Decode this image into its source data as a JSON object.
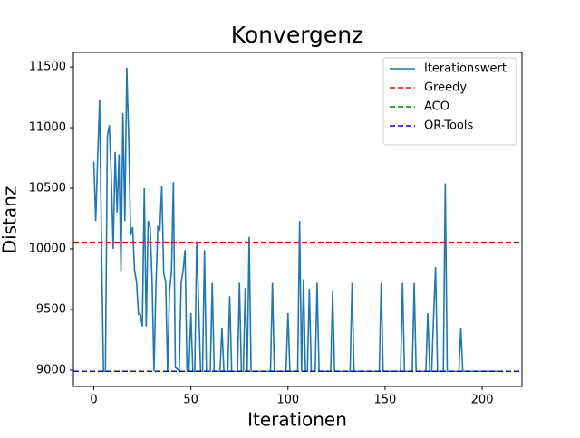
{
  "chart_data": {
    "type": "line",
    "title": "Konvergenz",
    "xlabel": "Iterationen",
    "ylabel": "Distanz",
    "x": [
      0,
      1,
      2,
      3,
      4,
      5,
      6,
      7,
      8,
      9,
      10,
      11,
      12,
      13,
      14,
      15,
      16,
      17,
      18,
      19,
      20,
      21,
      22,
      23,
      24,
      25,
      26,
      27,
      28,
      29,
      30,
      31,
      32,
      33,
      34,
      35,
      36,
      37,
      38,
      39,
      40,
      41,
      42,
      43,
      44,
      45,
      46,
      47,
      48,
      49,
      50,
      51,
      52,
      53,
      54,
      55,
      56,
      57,
      58,
      59,
      60,
      61,
      62,
      63,
      64,
      65,
      66,
      67,
      68,
      69,
      70,
      71,
      72,
      73,
      74,
      75,
      76,
      77,
      78,
      79,
      80,
      81,
      82,
      83,
      84,
      85,
      86,
      87,
      88,
      89,
      90,
      91,
      92,
      93,
      94,
      95,
      96,
      97,
      98,
      99,
      100,
      101,
      102,
      103,
      104,
      105,
      106,
      107,
      108,
      109,
      110,
      111,
      112,
      113,
      114,
      115,
      116,
      117,
      118,
      119,
      120,
      121,
      122,
      123,
      124,
      125,
      126,
      127,
      128,
      129,
      130,
      131,
      132,
      133,
      134,
      135,
      136,
      137,
      138,
      139,
      140,
      141,
      142,
      143,
      144,
      145,
      146,
      147,
      148,
      149,
      150,
      151,
      152,
      153,
      154,
      155,
      156,
      157,
      158,
      159,
      160,
      161,
      162,
      163,
      164,
      165,
      166,
      167,
      168,
      169,
      170,
      171,
      172,
      173,
      174,
      175,
      176,
      177,
      178,
      179,
      180,
      181,
      182,
      183,
      184,
      185,
      186,
      187,
      188,
      189,
      190,
      191,
      192,
      193,
      194,
      195,
      196,
      197,
      198,
      199,
      200,
      201,
      202,
      203,
      204,
      205,
      206,
      207,
      208,
      209,
      210
    ],
    "series": [
      {
        "name": "Iterationswert",
        "color": "#1f77b4",
        "values": [
          10720,
          10230,
          10750,
          11230,
          10000,
          8990,
          8990,
          10930,
          11020,
          10600,
          10000,
          10800,
          10300,
          10780,
          9810,
          11120,
          10230,
          11495,
          10900,
          10110,
          10180,
          9820,
          9730,
          9460,
          9460,
          9360,
          10500,
          9360,
          10230,
          10180,
          9750,
          8990,
          9700,
          10180,
          10160,
          10520,
          9800,
          9730,
          8990,
          9650,
          9810,
          10550,
          9020,
          9010,
          8990,
          9720,
          9820,
          9990,
          8990,
          8990,
          9470,
          8990,
          8990,
          10050,
          9540,
          8990,
          8990,
          9990,
          8990,
          8990,
          8990,
          9720,
          8990,
          8990,
          8990,
          8990,
          9350,
          8990,
          8990,
          8990,
          9610,
          8990,
          8990,
          8990,
          8990,
          9720,
          8990,
          8990,
          9680,
          8990,
          10100,
          8990,
          8990,
          8990,
          8990,
          8990,
          8990,
          8990,
          8990,
          8990,
          8990,
          8990,
          9720,
          8990,
          8990,
          8990,
          8990,
          8990,
          8990,
          8990,
          9470,
          8990,
          8990,
          8990,
          8990,
          8990,
          10230,
          8990,
          9750,
          8990,
          8990,
          9670,
          8990,
          8990,
          8990,
          9720,
          8990,
          8990,
          8990,
          8990,
          8990,
          8990,
          8990,
          9650,
          8990,
          8990,
          8990,
          8990,
          8990,
          8990,
          8990,
          8990,
          8990,
          9720,
          8990,
          8990,
          8990,
          8990,
          8990,
          8990,
          8990,
          8990,
          8990,
          8990,
          8990,
          8990,
          8990,
          8990,
          9720,
          8990,
          8990,
          8990,
          8990,
          8990,
          8990,
          8990,
          8990,
          8990,
          8990,
          9720,
          8990,
          8990,
          8990,
          8990,
          8990,
          9720,
          8990,
          8990,
          8990,
          8990,
          8990,
          8990,
          9470,
          8990,
          8990,
          9450,
          9850,
          8990,
          8990,
          8990,
          8990,
          10540,
          8990,
          8990,
          8990,
          8990,
          8990,
          8990,
          8990,
          9350,
          8990,
          8990,
          8990,
          8990,
          8990,
          8990,
          8990,
          8990,
          8990,
          8990,
          8990,
          8990,
          8990,
          8990,
          8990,
          8990,
          8990,
          8990,
          8990,
          8990,
          8990
        ]
      }
    ],
    "hlines": [
      {
        "name": "Greedy",
        "color": "red",
        "value": 10055
      },
      {
        "name": "ACO",
        "color": "green",
        "value": 8990
      },
      {
        "name": "OR-Tools",
        "color": "blue",
        "value": 8990
      }
    ],
    "xlim": [
      -10.5,
      220.5
    ],
    "ylim": [
      8865,
      11620
    ],
    "xticks": [
      0,
      50,
      100,
      150,
      200
    ],
    "yticks": [
      9000,
      9500,
      10000,
      10500,
      11000,
      11500
    ],
    "legend": "upper right"
  }
}
